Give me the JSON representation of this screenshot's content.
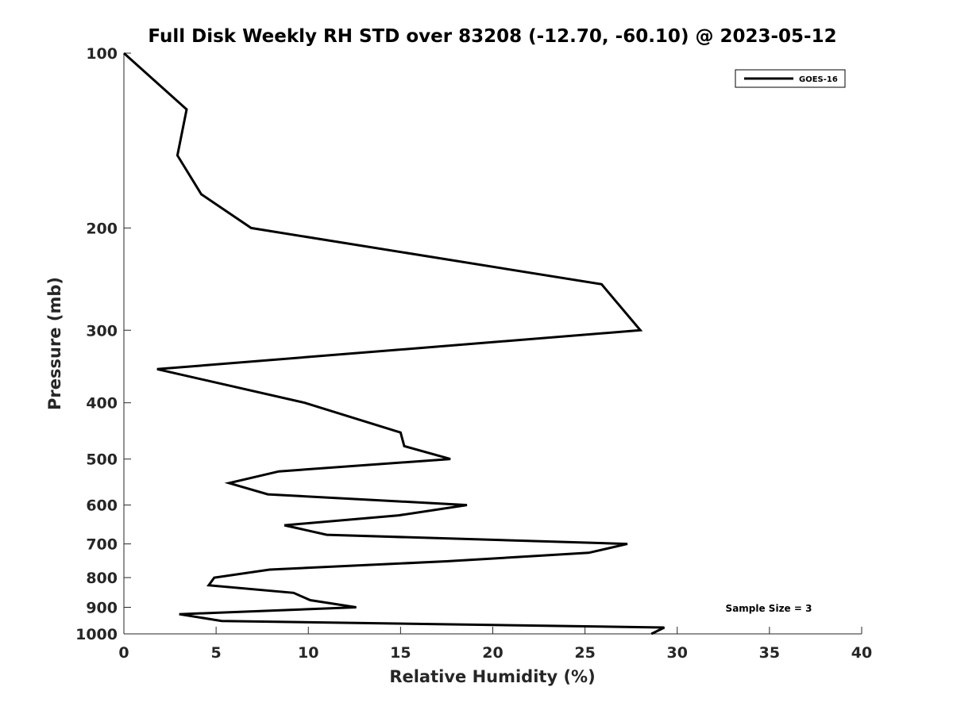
{
  "chart_data": {
    "type": "line",
    "title": "Full Disk Weekly RH STD over 83208 (-12.70, -60.10) @ 2023-05-12",
    "xlabel": "Relative Humidity (%)",
    "ylabel": "Pressure (mb)",
    "xlim": [
      0,
      40
    ],
    "ylim": [
      100,
      1000
    ],
    "y_scale": "log",
    "y_reversed": true,
    "xticks": [
      0,
      5,
      10,
      15,
      20,
      25,
      30,
      35,
      40
    ],
    "yticks": [
      100,
      200,
      300,
      400,
      500,
      600,
      700,
      800,
      900,
      1000
    ],
    "grid": false,
    "legend_position": "top-right",
    "annotation": "Sample Size = 3",
    "series": [
      {
        "name": "GOES-16",
        "color": "#000000",
        "points": [
          {
            "x": 0.0,
            "y": 100
          },
          {
            "x": 3.4,
            "y": 125
          },
          {
            "x": 2.9,
            "y": 150
          },
          {
            "x": 4.2,
            "y": 175
          },
          {
            "x": 6.9,
            "y": 200
          },
          {
            "x": 25.9,
            "y": 250
          },
          {
            "x": 28.0,
            "y": 300
          },
          {
            "x": 1.8,
            "y": 350
          },
          {
            "x": 9.8,
            "y": 400
          },
          {
            "x": 15.0,
            "y": 450
          },
          {
            "x": 15.2,
            "y": 475
          },
          {
            "x": 17.7,
            "y": 500
          },
          {
            "x": 8.4,
            "y": 525
          },
          {
            "x": 5.7,
            "y": 550
          },
          {
            "x": 7.8,
            "y": 575
          },
          {
            "x": 18.6,
            "y": 600
          },
          {
            "x": 14.9,
            "y": 625
          },
          {
            "x": 8.7,
            "y": 650
          },
          {
            "x": 11.0,
            "y": 675
          },
          {
            "x": 27.3,
            "y": 700
          },
          {
            "x": 25.2,
            "y": 725
          },
          {
            "x": 17.5,
            "y": 750
          },
          {
            "x": 7.9,
            "y": 775
          },
          {
            "x": 4.9,
            "y": 800
          },
          {
            "x": 4.6,
            "y": 825
          },
          {
            "x": 9.2,
            "y": 850
          },
          {
            "x": 10.1,
            "y": 875
          },
          {
            "x": 12.6,
            "y": 900
          },
          {
            "x": 3.0,
            "y": 925
          },
          {
            "x": 5.3,
            "y": 950
          },
          {
            "x": 29.3,
            "y": 975
          },
          {
            "x": 28.6,
            "y": 1000
          }
        ]
      }
    ]
  }
}
